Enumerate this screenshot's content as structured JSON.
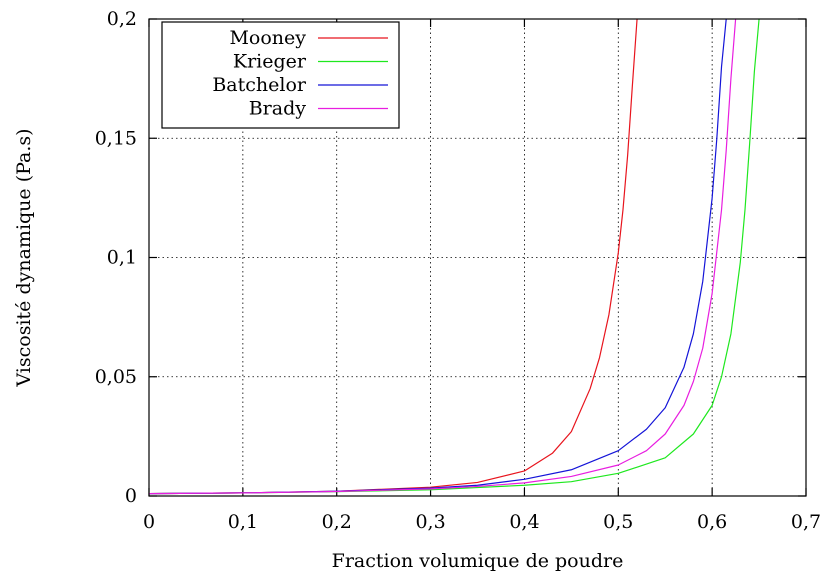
{
  "chart_data": {
    "type": "line",
    "title": "",
    "xlabel": "Fraction volumique de poudre",
    "ylabel": "Viscosité dynamique (Pa.s)",
    "xlim": [
      0,
      0.7
    ],
    "ylim": [
      0,
      0.2
    ],
    "grid": true,
    "legend_position": "top-left",
    "x_ticks": [
      {
        "value": 0,
        "label": "0"
      },
      {
        "value": 0.1,
        "label": "0,1"
      },
      {
        "value": 0.2,
        "label": "0,2"
      },
      {
        "value": 0.3,
        "label": "0,3"
      },
      {
        "value": 0.4,
        "label": "0,4"
      },
      {
        "value": 0.5,
        "label": "0,5"
      },
      {
        "value": 0.6,
        "label": "0,6"
      },
      {
        "value": 0.7,
        "label": "0,7"
      }
    ],
    "y_ticks": [
      {
        "value": 0,
        "label": "0"
      },
      {
        "value": 0.05,
        "label": "0,05"
      },
      {
        "value": 0.1,
        "label": "0,1"
      },
      {
        "value": 0.15,
        "label": "0,15"
      },
      {
        "value": 0.2,
        "label": "0,2"
      }
    ],
    "series": [
      {
        "name": "Mooney",
        "color": "#e8141d",
        "x": [
          0,
          0.1,
          0.2,
          0.3,
          0.35,
          0.4,
          0.43,
          0.45,
          0.47,
          0.48,
          0.49,
          0.5,
          0.505,
          0.51,
          0.515,
          0.52
        ],
        "y": [
          0.001,
          0.0013,
          0.002,
          0.0037,
          0.0057,
          0.0105,
          0.018,
          0.027,
          0.045,
          0.058,
          0.076,
          0.102,
          0.12,
          0.143,
          0.172,
          0.2
        ]
      },
      {
        "name": "Krieger",
        "color": "#1ee81e",
        "x": [
          0,
          0.1,
          0.2,
          0.3,
          0.4,
          0.45,
          0.5,
          0.55,
          0.58,
          0.6,
          0.61,
          0.62,
          0.63,
          0.635,
          0.64,
          0.645,
          0.65
        ],
        "y": [
          0.001,
          0.0013,
          0.0018,
          0.0026,
          0.0045,
          0.006,
          0.0095,
          0.016,
          0.026,
          0.038,
          0.05,
          0.068,
          0.098,
          0.12,
          0.148,
          0.178,
          0.2
        ]
      },
      {
        "name": "Batchelor",
        "color": "#1414d8",
        "x": [
          0,
          0.1,
          0.2,
          0.3,
          0.35,
          0.4,
          0.45,
          0.5,
          0.53,
          0.55,
          0.57,
          0.58,
          0.59,
          0.6,
          0.605,
          0.61,
          0.615
        ],
        "y": [
          0.001,
          0.0013,
          0.002,
          0.0033,
          0.0045,
          0.007,
          0.011,
          0.019,
          0.028,
          0.037,
          0.054,
          0.068,
          0.09,
          0.125,
          0.15,
          0.18,
          0.2
        ]
      },
      {
        "name": "Brady",
        "color": "#e81ee0",
        "x": [
          0,
          0.1,
          0.2,
          0.3,
          0.35,
          0.4,
          0.45,
          0.5,
          0.53,
          0.55,
          0.57,
          0.58,
          0.59,
          0.6,
          0.61,
          0.615,
          0.62,
          0.625
        ],
        "y": [
          0.001,
          0.0013,
          0.0019,
          0.003,
          0.004,
          0.0055,
          0.0082,
          0.013,
          0.019,
          0.026,
          0.038,
          0.048,
          0.062,
          0.085,
          0.12,
          0.145,
          0.175,
          0.2
        ]
      }
    ]
  }
}
